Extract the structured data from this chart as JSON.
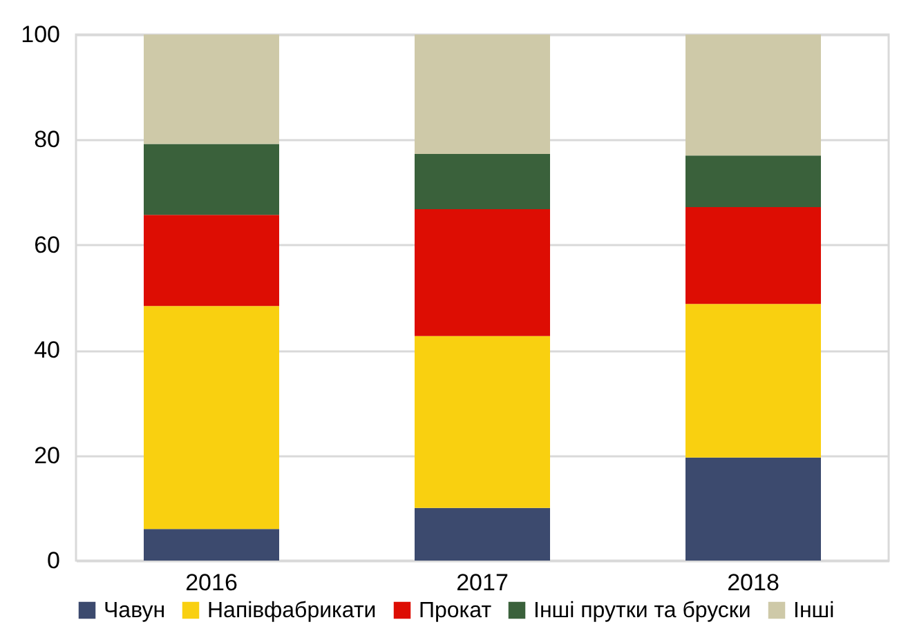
{
  "chart_data": {
    "type": "bar",
    "stacked": true,
    "categories": [
      "2016",
      "2017",
      "2018"
    ],
    "series": [
      {
        "name": "Чавун",
        "color": "#3c4a6e",
        "values": [
          6,
          10,
          19.6
        ]
      },
      {
        "name": "Напівфабрикати",
        "color": "#f9d010",
        "values": [
          42.4,
          32.7,
          29.2
        ]
      },
      {
        "name": "Прокат",
        "color": "#dd0d03",
        "values": [
          17.3,
          24.1,
          18.4
        ]
      },
      {
        "name": "Інші прутки та бруски",
        "color": "#3a613b",
        "values": [
          13.5,
          10.5,
          9.8
        ]
      },
      {
        "name": "Інші",
        "color": "#cec9a8",
        "values": [
          20.8,
          22.7,
          23
        ]
      }
    ],
    "ylim": [
      0,
      100
    ],
    "yticks": [
      0,
      20,
      40,
      60,
      80,
      100
    ],
    "grid": "y",
    "legend": "bottom"
  }
}
